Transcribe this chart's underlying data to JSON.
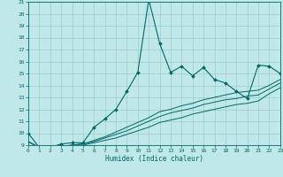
{
  "xlabel": "Humidex (Indice chaleur)",
  "background_color": "#c0e8e8",
  "grid_color": "#a0cccc",
  "line_color": "#006868",
  "xlim": [
    0,
    23
  ],
  "ylim": [
    9,
    21
  ],
  "xticks": [
    0,
    1,
    2,
    3,
    4,
    5,
    6,
    7,
    8,
    9,
    10,
    11,
    12,
    13,
    14,
    15,
    16,
    17,
    18,
    19,
    20,
    21,
    22,
    23
  ],
  "yticks": [
    9,
    10,
    11,
    12,
    13,
    14,
    15,
    16,
    17,
    18,
    19,
    20,
    21
  ],
  "line_main": {
    "x": [
      0,
      1,
      2,
      3,
      4,
      5,
      6,
      7,
      8,
      9,
      10,
      11,
      12,
      13,
      14,
      15,
      16,
      17,
      18,
      19,
      20,
      21,
      22,
      23
    ],
    "y": [
      10.0,
      8.8,
      8.8,
      9.1,
      9.2,
      9.2,
      10.5,
      11.2,
      12.0,
      13.5,
      15.1,
      21.2,
      17.5,
      15.1,
      15.6,
      14.8,
      15.5,
      14.5,
      14.2,
      13.5,
      12.9,
      15.7,
      15.6,
      15.0
    ]
  },
  "line2": {
    "x": [
      0,
      1,
      2,
      3,
      4,
      5,
      6,
      7,
      8,
      9,
      10,
      11,
      12,
      13,
      14,
      15,
      16,
      17,
      18,
      19,
      20,
      21,
      22,
      23
    ],
    "y": [
      9.3,
      8.8,
      8.8,
      8.9,
      9.0,
      9.0,
      9.2,
      9.4,
      9.6,
      9.9,
      10.2,
      10.5,
      10.9,
      11.1,
      11.3,
      11.6,
      11.8,
      12.0,
      12.2,
      12.4,
      12.5,
      12.7,
      13.3,
      13.8
    ]
  },
  "line3": {
    "x": [
      0,
      1,
      2,
      3,
      4,
      5,
      6,
      7,
      8,
      9,
      10,
      11,
      12,
      13,
      14,
      15,
      16,
      17,
      18,
      19,
      20,
      21,
      22,
      23
    ],
    "y": [
      9.3,
      8.8,
      8.8,
      8.9,
      9.0,
      9.1,
      9.3,
      9.6,
      9.9,
      10.2,
      10.6,
      11.0,
      11.4,
      11.7,
      11.9,
      12.1,
      12.4,
      12.6,
      12.8,
      12.9,
      13.1,
      13.2,
      13.7,
      14.2
    ]
  },
  "line4": {
    "x": [
      0,
      1,
      2,
      3,
      4,
      5,
      6,
      7,
      8,
      9,
      10,
      11,
      12,
      13,
      14,
      15,
      16,
      17,
      18,
      19,
      20,
      21,
      22,
      23
    ],
    "y": [
      9.3,
      8.8,
      8.8,
      8.9,
      9.0,
      9.1,
      9.4,
      9.7,
      10.1,
      10.5,
      10.9,
      11.3,
      11.8,
      12.0,
      12.3,
      12.5,
      12.8,
      13.0,
      13.2,
      13.4,
      13.5,
      13.6,
      14.0,
      14.5
    ]
  }
}
